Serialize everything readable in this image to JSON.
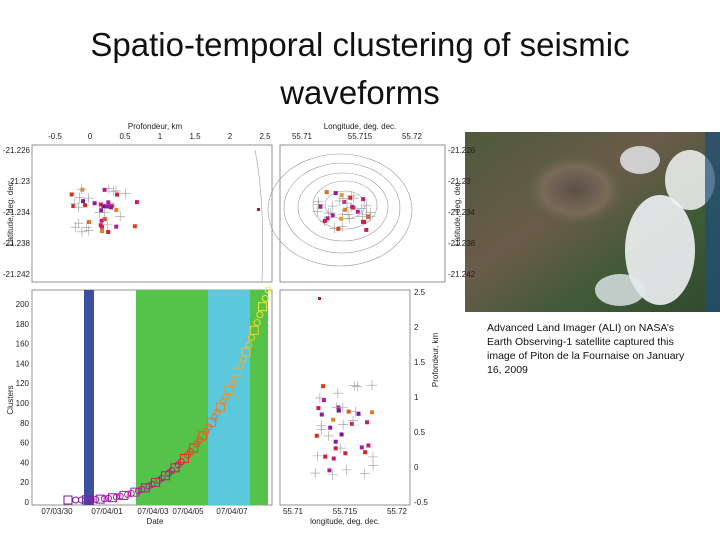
{
  "slide": {
    "title": [
      "Spatio-temporal clustering of seismic",
      "waveforms"
    ],
    "figure": {
      "top_left": {
        "x_label": "Profondeur, km",
        "x_ticks": [
          "-0.5",
          "0",
          "0.5",
          "1",
          "1.5",
          "2",
          "2.5"
        ],
        "y_label": "Latitude, deg. dec.",
        "y_ticks": [
          "-21.226",
          "-21.23",
          "-21.234",
          "-21.238",
          "-21.242"
        ]
      },
      "top_right": {
        "x_label": "Longitude, deg. dec.",
        "x_ticks": [
          "55.71",
          "55.715",
          "55.72"
        ],
        "y_label": "Latitude, deg. dec.",
        "y_ticks": [
          "-21.226",
          "-21.23",
          "-21.234",
          "-21.238",
          "-21.242"
        ]
      },
      "bottom_left": {
        "x_label": "Date",
        "x_ticks": [
          "07/03/30",
          "07/04/01",
          "07/04/03",
          "07/04/05",
          "07/04/07"
        ],
        "y_label": "Clusters",
        "y_ticks": [
          "0",
          "20",
          "40",
          "60",
          "80",
          "100",
          "120",
          "140",
          "160",
          "180",
          "200"
        ]
      },
      "bottom_right": {
        "x_label": "longitude, deg. dec.",
        "x_ticks": [
          "55.71",
          "55.715",
          "55.72"
        ],
        "y_label": "Profondeur, km",
        "y_ticks": [
          "2.5",
          "2",
          "1.5",
          "1",
          "0.5",
          "0",
          "-0.5"
        ]
      }
    },
    "caption": [
      "Advanced Land Imager (ALI) on NASA’s",
      "Earth Observing-1 satellite captured this",
      "image of Piton de la Fournaise on January",
      "16, 2009"
    ]
  }
}
